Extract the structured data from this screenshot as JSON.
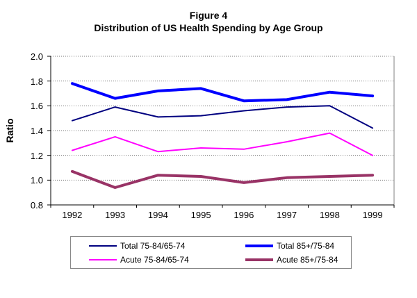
{
  "chart_data": {
    "type": "line",
    "title": "Figure 4",
    "subtitle": "Distribution of US Health Spending by Age Group",
    "xlabel": "",
    "ylabel": "Ratio",
    "ylim": [
      0.8,
      2.0
    ],
    "ytick_step": 0.2,
    "ytick_labels": [
      "2.0",
      "1.8",
      "1.6",
      "1.4",
      "1.2",
      "1.0",
      "0.8"
    ],
    "grid": true,
    "legend_position": "bottom",
    "categories": [
      "1992",
      "1993",
      "1994",
      "1995",
      "1996",
      "1997",
      "1998",
      "1999"
    ],
    "series": [
      {
        "name": "Total 75-84/65-74",
        "color": "#000080",
        "line_width": 2,
        "values": [
          1.48,
          1.59,
          1.51,
          1.52,
          1.56,
          1.59,
          1.6,
          1.42
        ]
      },
      {
        "name": "Total 85+/75-84",
        "color": "#0000FF",
        "line_width": 4,
        "values": [
          1.78,
          1.66,
          1.72,
          1.74,
          1.64,
          1.65,
          1.71,
          1.68
        ]
      },
      {
        "name": "Acute 75-84/65-74",
        "color": "#FF00FF",
        "line_width": 2,
        "values": [
          1.24,
          1.35,
          1.23,
          1.26,
          1.25,
          1.31,
          1.38,
          1.2
        ]
      },
      {
        "name": "Acute 85+/75-84",
        "color": "#993366",
        "line_width": 4,
        "values": [
          1.07,
          0.94,
          1.04,
          1.03,
          0.98,
          1.02,
          1.03,
          1.04
        ]
      }
    ]
  },
  "colors": {
    "axis": "#000000",
    "grid": "#777777",
    "frame": "#808080",
    "background": "#FFFFFF",
    "legend_border": "#888888"
  }
}
